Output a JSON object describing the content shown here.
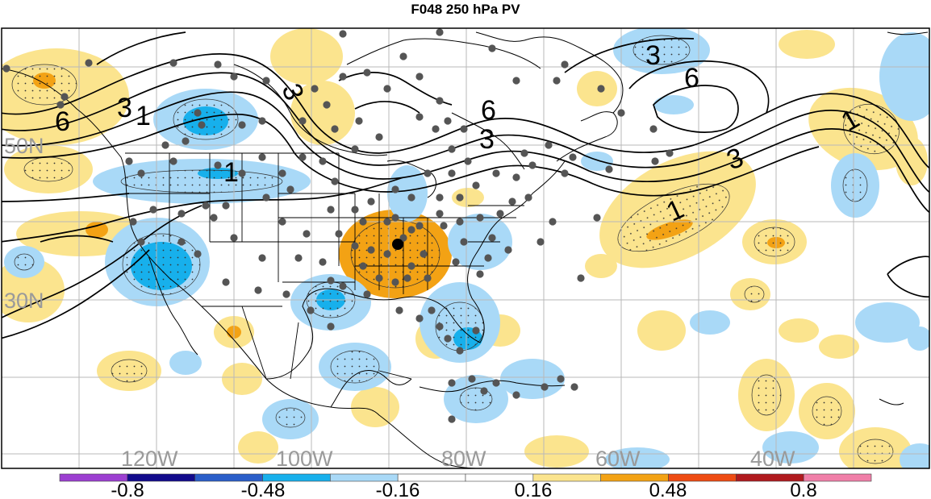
{
  "title": "F048 250 hPa PV",
  "gridlines": {
    "lat_labels": [
      "50N",
      "30N"
    ],
    "lon_labels": [
      "120W",
      "100W",
      "80W",
      "60W",
      "40W"
    ]
  },
  "contour_labels": [
    "6",
    "3",
    "1",
    "3",
    "1",
    "6",
    "3",
    "6",
    "3",
    "3",
    "1",
    "1"
  ],
  "colorbar": {
    "tick_labels": [
      "-0.8",
      "-0.48",
      "-0.16",
      "0.16",
      "0.48",
      "0.8"
    ],
    "colors": [
      "#9c3fd1",
      "#120a8c",
      "#2a5ec9",
      "#17b0ec",
      "#a9d9f7",
      "#ffffff",
      "#ffffff",
      "#fbe48e",
      "#f3a214",
      "#ee4b13",
      "#b0191e",
      "#f07fa8"
    ]
  },
  "anomaly_colors": {
    "light_blue": "#a9d9f7",
    "blue": "#17b0ec",
    "light_yellow": "#fbe48e",
    "orange": "#f3a214"
  },
  "station_dot_color": "#555555"
}
